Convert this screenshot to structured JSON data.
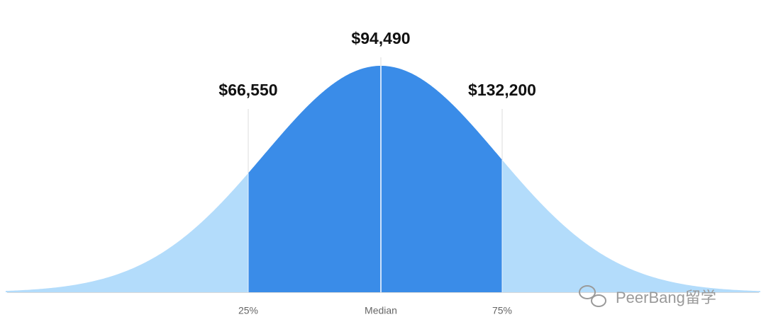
{
  "chart_data": {
    "type": "distribution",
    "categories": [
      "25%",
      "Median",
      "75%"
    ],
    "values": [
      66550,
      94490,
      132200
    ],
    "value_labels": [
      "$66,550",
      "$94,490",
      "$132,200"
    ],
    "colors": {
      "inner": "#3a8ce8",
      "outer": "#b3dcfb"
    },
    "watermark": "PeerBang留学"
  }
}
